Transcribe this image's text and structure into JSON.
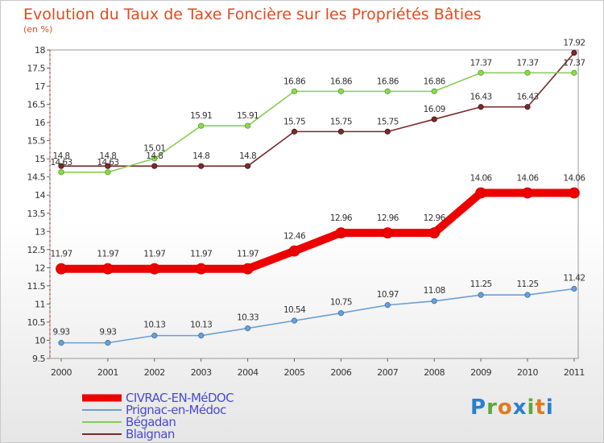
{
  "chart_data": {
    "type": "line",
    "title": "Evolution du Taux de Taxe Foncière sur les Propriétés Bâties",
    "subtitle": "(en %)",
    "xlabel": "",
    "ylabel": "",
    "x": [
      "2000",
      "2001",
      "2002",
      "2003",
      "2004",
      "2005",
      "2006",
      "2007",
      "2008",
      "2009",
      "2010",
      "2011"
    ],
    "ylim": [
      9.5,
      18
    ],
    "yticks": [
      "9.5",
      "10",
      "10.5",
      "11",
      "11.5",
      "12",
      "12.5",
      "13",
      "13.5",
      "14",
      "14.5",
      "15",
      "15.5",
      "16",
      "16.5",
      "17",
      "17.5",
      "18"
    ],
    "grid": false,
    "legend_position": "bottom-left",
    "series": [
      {
        "name": "CIVRAC-EN-MéDOC",
        "color": "#ee0000",
        "values": [
          11.97,
          11.97,
          11.97,
          11.97,
          11.97,
          12.46,
          12.96,
          12.96,
          12.96,
          14.06,
          14.06,
          14.06
        ],
        "labels": [
          "11.97",
          "11.97",
          "11.97",
          "11.97",
          "11.97",
          "12.46",
          "12.96",
          "12.96",
          "12.96",
          "14.06",
          "14.06",
          "14.06"
        ]
      },
      {
        "name": "Prignac-en-Médoc",
        "color": "#6aa0d2",
        "values": [
          9.93,
          9.93,
          10.13,
          10.13,
          10.33,
          10.54,
          10.75,
          10.97,
          11.08,
          11.25,
          11.25,
          11.42
        ],
        "labels": [
          "9.93",
          "9.93",
          "10.13",
          "10.13",
          "10.33",
          "10.54",
          "10.75",
          "10.97",
          "11.08",
          "11.25",
          "11.25",
          "11.42"
        ]
      },
      {
        "name": "Bégadan",
        "color": "#88cc55",
        "values": [
          14.63,
          14.63,
          15.01,
          15.91,
          15.91,
          16.86,
          16.86,
          16.86,
          16.86,
          17.37,
          17.37,
          17.37
        ],
        "labels": [
          "14.63",
          "14.63",
          "15.01",
          "15.91",
          "15.91",
          "16.86",
          "16.86",
          "16.86",
          "16.86",
          "17.37",
          "17.37",
          "17.37"
        ]
      },
      {
        "name": "Blaignan",
        "color": "#7a2a2a",
        "values": [
          14.8,
          14.8,
          14.8,
          14.8,
          14.8,
          15.75,
          15.75,
          15.75,
          16.09,
          16.43,
          16.43,
          17.92
        ],
        "labels": [
          "14.8",
          "14.8",
          "14.8",
          "14.8",
          "14.8",
          "15.75",
          "15.75",
          "15.75",
          "16.09",
          "16.43",
          "16.43",
          "17.92"
        ]
      }
    ]
  },
  "logo": {
    "alt": "Proxiti",
    "letters": [
      {
        "ch": "P",
        "color": "#2a7fd0"
      },
      {
        "ch": "r",
        "color": "#5aaa3a"
      },
      {
        "ch": "o",
        "color": "#e07a20"
      },
      {
        "ch": "x",
        "color": "#2a7fd0"
      },
      {
        "ch": "i",
        "color": "#5aaa3a"
      },
      {
        "ch": "t",
        "color": "#e07a20"
      },
      {
        "ch": "i",
        "color": "#2a7fd0"
      }
    ]
  }
}
